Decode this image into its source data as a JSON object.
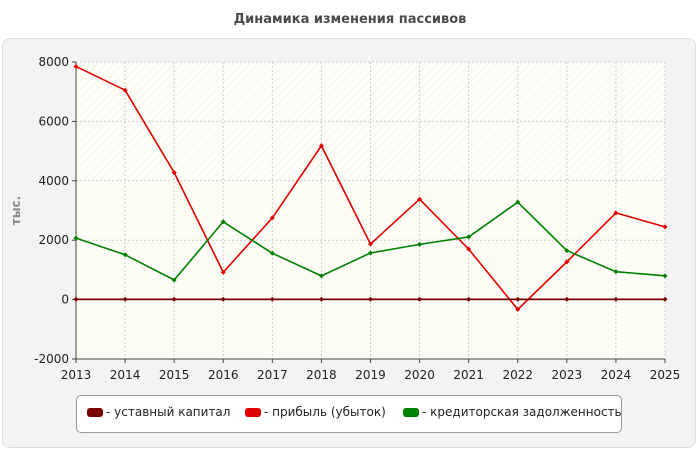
{
  "chart_data": {
    "type": "line",
    "title": "Динамика изменения пассивов",
    "ylabel": "тыс.",
    "xlabel": "",
    "categories": [
      "2013",
      "2014",
      "2015",
      "2016",
      "2017",
      "2018",
      "2019",
      "2020",
      "2021",
      "2022",
      "2023",
      "2024",
      "2025"
    ],
    "ylim": [
      -2000,
      8000
    ],
    "yticks": [
      -2000,
      0,
      2000,
      4000,
      6000,
      8000
    ],
    "y_tick_labels": [
      "-2000",
      "0",
      "2000",
      "4000",
      "6000",
      "8000"
    ],
    "grid": true,
    "legend_position": "bottom",
    "series": [
      {
        "name": "- уставный капитал",
        "color": "#7a0000",
        "values": [
          10,
          10,
          10,
          10,
          10,
          10,
          10,
          10,
          10,
          10,
          10,
          10,
          10
        ]
      },
      {
        "name": "- прибыль (убыток)",
        "color": "#e00000",
        "values": [
          7850,
          7050,
          4280,
          920,
          2750,
          5180,
          1870,
          3380,
          1700,
          -330,
          1270,
          2920,
          2450
        ]
      },
      {
        "name": "- кредиторская задолженность",
        "color": "#008000",
        "values": [
          2070,
          1510,
          660,
          2620,
          1560,
          800,
          1570,
          1860,
          2110,
          3280,
          1650,
          940,
          800
        ]
      }
    ]
  }
}
